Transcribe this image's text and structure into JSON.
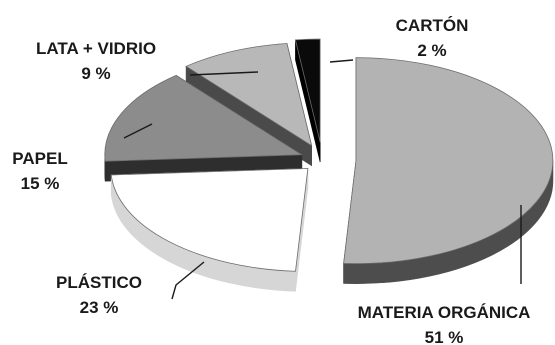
{
  "chart_data": {
    "type": "pie",
    "title": "",
    "style": "3d-exploded",
    "legend": "none",
    "slices": [
      {
        "name": "MATERIA ORGÁNICA",
        "pct_label": "51 %",
        "value": 51,
        "color": "#b3b3b3",
        "dark": "#4d4d4d"
      },
      {
        "name": "PLÁSTICO",
        "pct_label": "23 %",
        "value": 23,
        "color": "#ffffff",
        "dark": "#d6d6d6"
      },
      {
        "name": "PAPEL",
        "pct_label": "15 %",
        "value": 15,
        "color": "#8c8c8c",
        "dark": "#2e2e2e"
      },
      {
        "name": "LATA + VIDRIO",
        "pct_label": "9 %",
        "value": 9,
        "color": "#b8b8b8",
        "dark": "#4a4a4a"
      },
      {
        "name": "CARTÓN",
        "pct_label": "2 %",
        "value": 2,
        "color": "#0a0a0a",
        "dark": "#000000"
      }
    ]
  }
}
